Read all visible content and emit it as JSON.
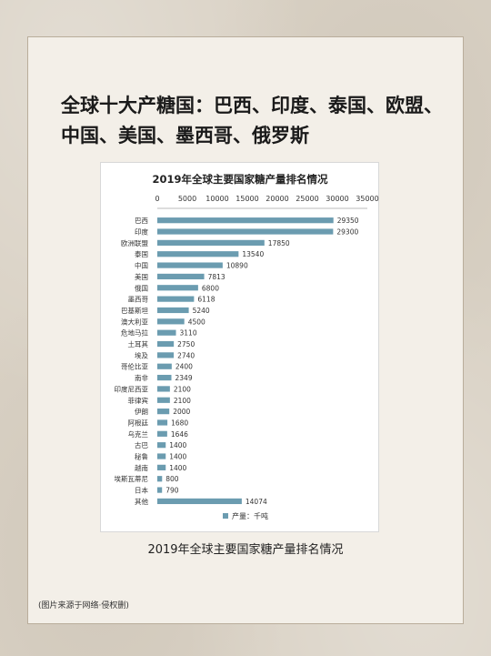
{
  "headline": "全球十大产糖国：巴西、印度、泰国、欧盟、中国、美国、墨西哥、俄罗斯",
  "caption": "2019年全球主要国家糖产量排名情况",
  "source_note": "(图片来源于网络·侵权删)",
  "chart_data": {
    "type": "bar",
    "orientation": "horizontal",
    "title": "2019年全球主要国家糖产量排名情况",
    "categories": [
      "巴西",
      "印度",
      "欧洲联盟",
      "泰国",
      "中国",
      "美国",
      "俄国",
      "墨西哥",
      "巴基斯坦",
      "澳大利亚",
      "危地马拉",
      "土耳其",
      "埃及",
      "哥伦比亚",
      "南非",
      "印度尼西亚",
      "菲律宾",
      "伊朗",
      "阿根廷",
      "乌克兰",
      "古巴",
      "秘鲁",
      "越南",
      "埃斯瓦蒂尼",
      "日本",
      "其他"
    ],
    "values": [
      29350,
      29300,
      17850,
      13540,
      10890,
      7813,
      6800,
      6118,
      5240,
      4500,
      3110,
      2750,
      2740,
      2400,
      2349,
      2100,
      2100,
      2000,
      1680,
      1646,
      1400,
      1400,
      1400,
      800,
      790,
      14074
    ],
    "series": [
      {
        "name": "产量：千吨"
      }
    ],
    "xlim": [
      0,
      35000
    ],
    "xticks": [
      0,
      5000,
      10000,
      15000,
      20000,
      25000,
      30000,
      35000
    ],
    "axis_position": "top",
    "legend_position": "bottom",
    "bar_color": "#6b9cb0",
    "grid": false
  }
}
